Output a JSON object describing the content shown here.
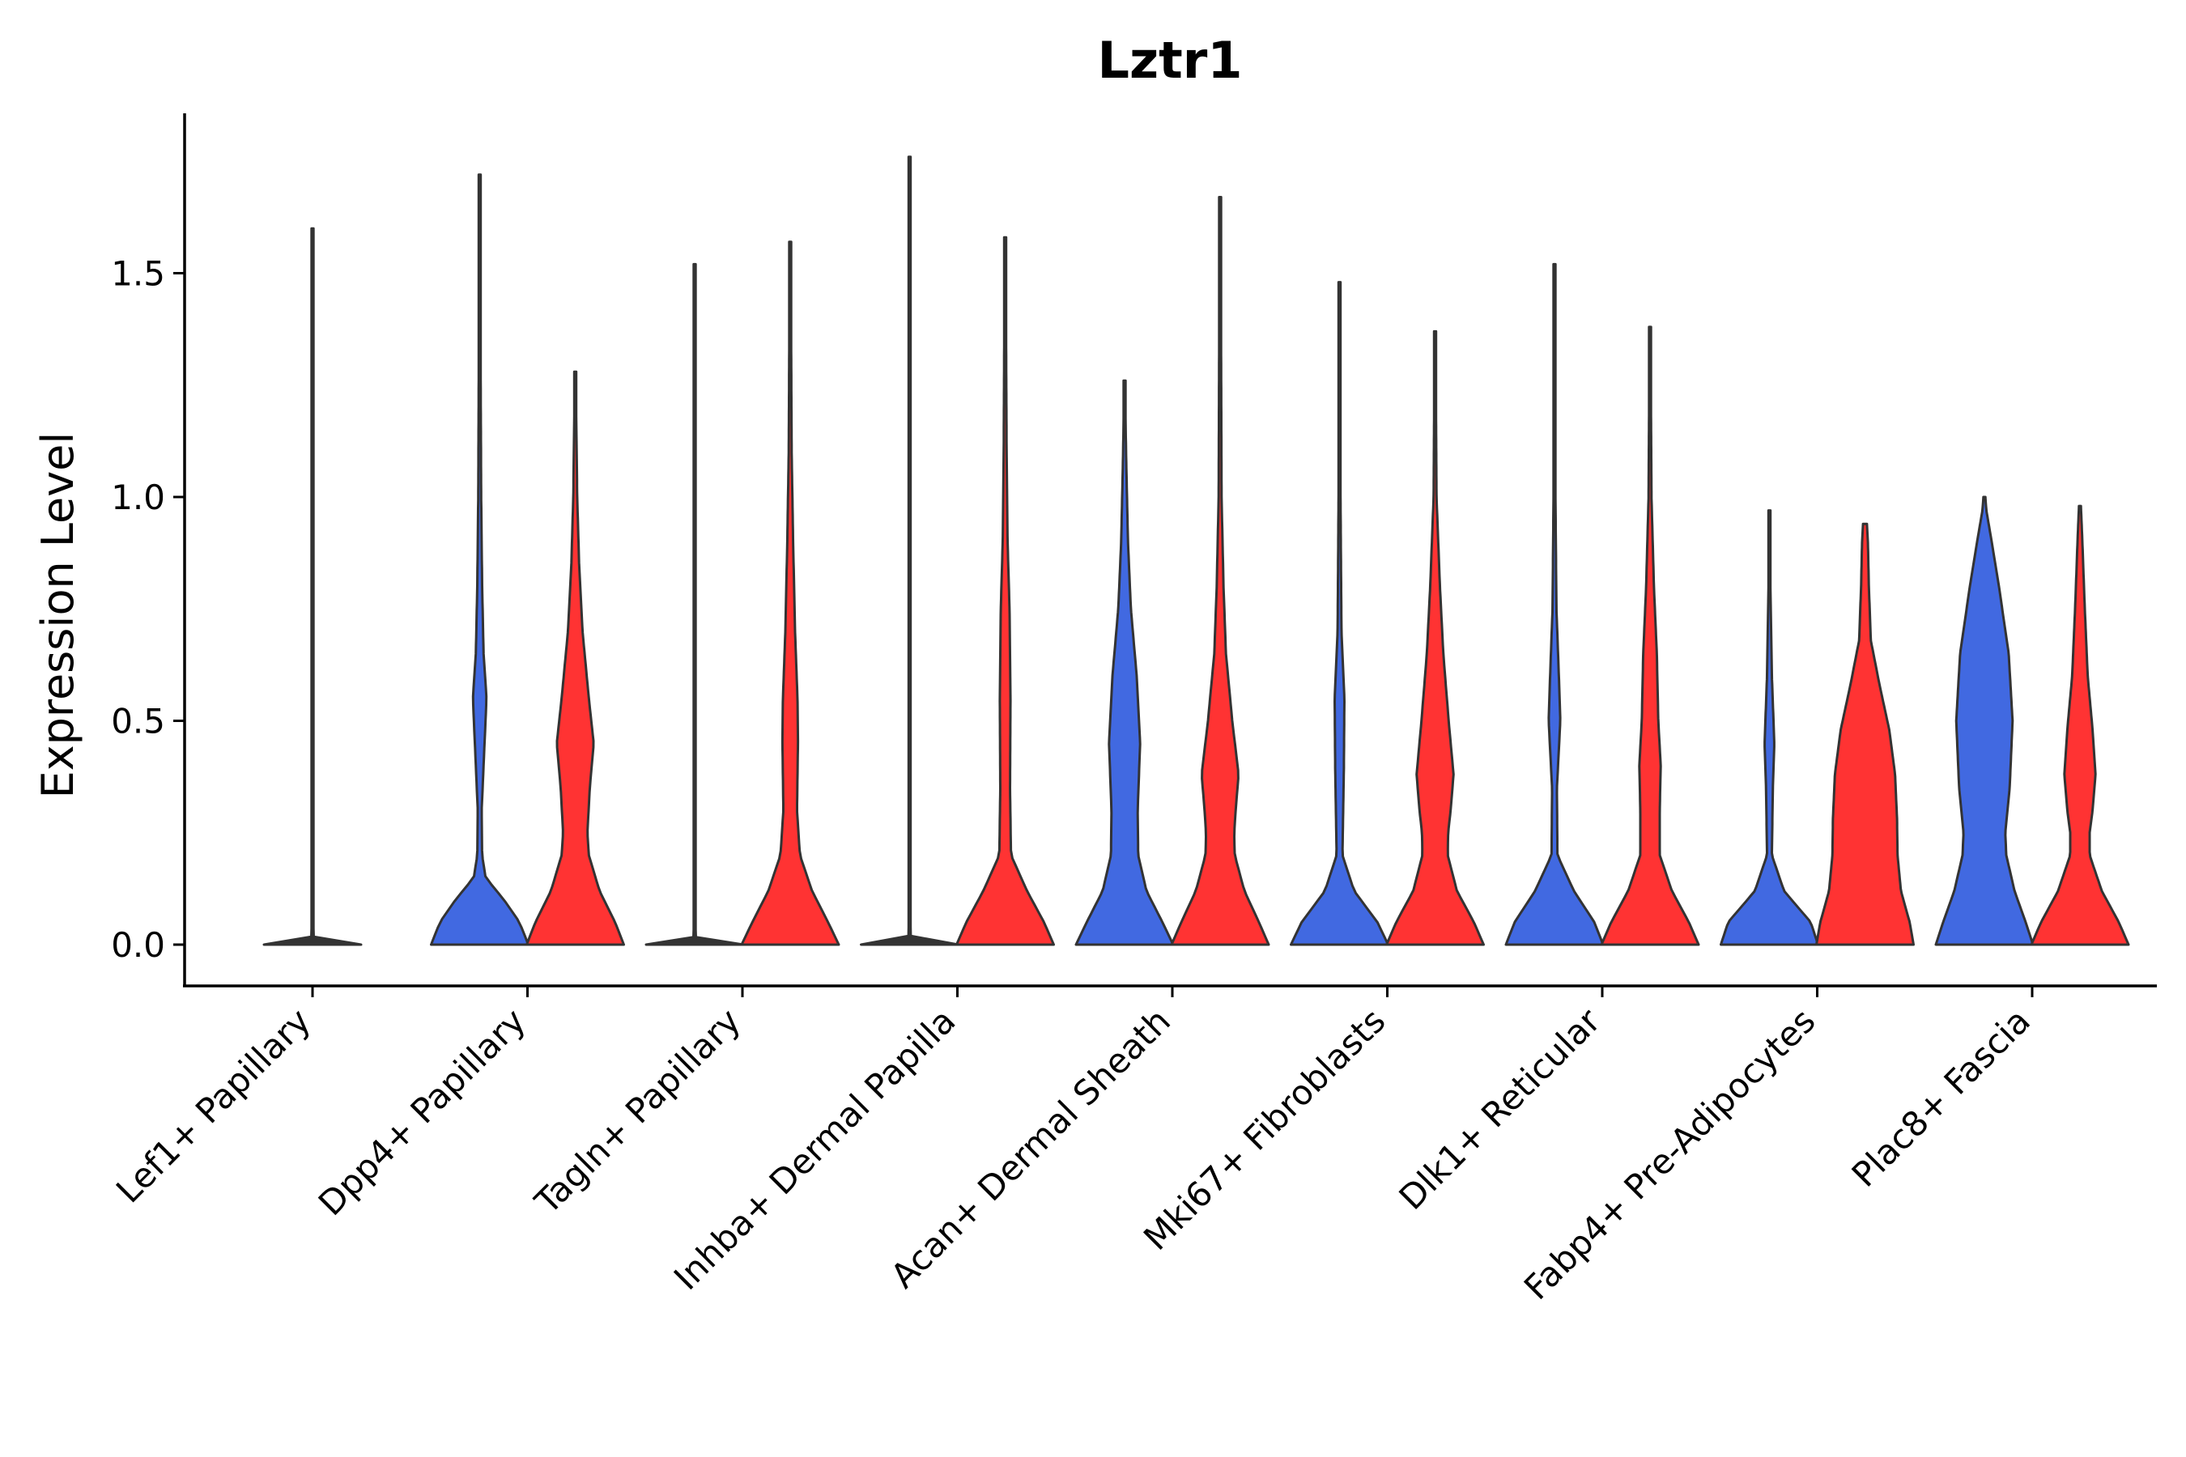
{
  "chart_data": {
    "type": "violin",
    "title": "Lztr1",
    "xlabel": "",
    "ylabel": "Expression Level",
    "ylim": [
      -0.09,
      1.85
    ],
    "yticks": [
      0.0,
      0.5,
      1.0,
      1.5
    ],
    "ytick_labels": [
      "0.0",
      "0.5",
      "1.0",
      "1.5"
    ],
    "grid": false,
    "legend": "none",
    "group_colors": {
      "blue": "#4169E1",
      "red": "#FF3333"
    },
    "categories": [
      "Lef1+ Papillary",
      "Dpp4+ Papillary",
      "Tagln+ Papillary",
      "Inhba+ Dermal Papilla",
      "Acan+ Dermal Sheath",
      "Mki67+ Fibroblasts",
      "Dlk1+ Reticular",
      "Fabp4+ Pre-Adipocytes",
      "Plac8+ Fascia"
    ],
    "series": [
      {
        "name": "blue",
        "color": "#4169E1",
        "violins": [
          {
            "category": "Lef1+ Papillary",
            "max": 1.6,
            "density": [
              [
                0,
                1
              ],
              [
                0.01,
                0.03
              ],
              [
                0.05,
                0.004
              ],
              [
                1.6,
                0.004
              ]
            ]
          },
          {
            "category": "Dpp4+ Papillary",
            "max": 1.72,
            "density": [
              [
                0,
                1
              ],
              [
                0.05,
                0.82
              ],
              [
                0.1,
                0.5
              ],
              [
                0.15,
                0.12
              ],
              [
                0.2,
                0.05
              ],
              [
                0.3,
                0.04
              ],
              [
                0.45,
                0.1
              ],
              [
                0.55,
                0.14
              ],
              [
                0.65,
                0.08
              ],
              [
                0.8,
                0.05
              ],
              [
                1.0,
                0.03
              ],
              [
                1.4,
                0.015
              ],
              [
                1.72,
                0.01
              ]
            ]
          },
          {
            "category": "Tagln+ Papillary",
            "max": 1.52,
            "density": [
              [
                0,
                1
              ],
              [
                0.01,
                0.03
              ],
              [
                0.05,
                0.004
              ],
              [
                1.52,
                0.004
              ]
            ]
          },
          {
            "category": "Inhba+ Dermal Papilla",
            "max": 1.76,
            "density": [
              [
                0,
                1
              ],
              [
                0.01,
                0.03
              ],
              [
                0.05,
                0.004
              ],
              [
                1.76,
                0.004
              ]
            ]
          },
          {
            "category": "Acan+ Dermal Sheath",
            "max": 1.26,
            "density": [
              [
                0,
                1
              ],
              [
                0.05,
                0.78
              ],
              [
                0.12,
                0.45
              ],
              [
                0.2,
                0.28
              ],
              [
                0.3,
                0.27
              ],
              [
                0.45,
                0.32
              ],
              [
                0.6,
                0.25
              ],
              [
                0.75,
                0.13
              ],
              [
                0.9,
                0.07
              ],
              [
                1.1,
                0.03
              ],
              [
                1.26,
                0.01
              ]
            ]
          },
          {
            "category": "Mki67+ Fibroblasts",
            "max": 1.48,
            "density": [
              [
                0,
                1
              ],
              [
                0.05,
                0.78
              ],
              [
                0.12,
                0.3
              ],
              [
                0.2,
                0.06
              ],
              [
                0.4,
                0.09
              ],
              [
                0.55,
                0.1
              ],
              [
                0.7,
                0.04
              ],
              [
                1.0,
                0.02
              ],
              [
                1.48,
                0.01
              ]
            ]
          },
          {
            "category": "Dlk1+ Reticular",
            "max": 1.52,
            "density": [
              [
                0,
                1
              ],
              [
                0.05,
                0.82
              ],
              [
                0.12,
                0.4
              ],
              [
                0.2,
                0.06
              ],
              [
                0.35,
                0.05
              ],
              [
                0.5,
                0.12
              ],
              [
                0.6,
                0.09
              ],
              [
                0.75,
                0.04
              ],
              [
                1.0,
                0.02
              ],
              [
                1.52,
                0.01
              ]
            ]
          },
          {
            "category": "Fabp4+ Pre-Adipocytes",
            "max": 0.97,
            "density": [
              [
                0,
                1
              ],
              [
                0.05,
                0.85
              ],
              [
                0.12,
                0.3
              ],
              [
                0.2,
                0.05
              ],
              [
                0.35,
                0.07
              ],
              [
                0.45,
                0.1
              ],
              [
                0.6,
                0.05
              ],
              [
                0.8,
                0.02
              ],
              [
                0.97,
                0.01
              ]
            ]
          },
          {
            "category": "Plac8+ Fascia",
            "max": 1.0,
            "density": [
              [
                0,
                1
              ],
              [
                0.05,
                0.85
              ],
              [
                0.12,
                0.62
              ],
              [
                0.2,
                0.45
              ],
              [
                0.25,
                0.43
              ],
              [
                0.35,
                0.52
              ],
              [
                0.5,
                0.58
              ],
              [
                0.65,
                0.5
              ],
              [
                0.8,
                0.3
              ],
              [
                0.9,
                0.15
              ],
              [
                0.97,
                0.04
              ],
              [
                1.0,
                0.02
              ]
            ]
          }
        ]
      },
      {
        "name": "red",
        "color": "#FF3333",
        "violins": [
          {
            "category": "Dpp4+ Papillary",
            "max": 1.28,
            "density": [
              [
                0,
                1
              ],
              [
                0.05,
                0.82
              ],
              [
                0.12,
                0.5
              ],
              [
                0.2,
                0.28
              ],
              [
                0.25,
                0.25
              ],
              [
                0.35,
                0.3
              ],
              [
                0.45,
                0.38
              ],
              [
                0.55,
                0.28
              ],
              [
                0.7,
                0.15
              ],
              [
                0.85,
                0.08
              ],
              [
                1.0,
                0.04
              ],
              [
                1.28,
                0.01
              ]
            ]
          },
          {
            "category": "Tagln+ Papillary",
            "max": 1.57,
            "density": [
              [
                0,
                1
              ],
              [
                0.05,
                0.78
              ],
              [
                0.12,
                0.45
              ],
              [
                0.2,
                0.2
              ],
              [
                0.3,
                0.14
              ],
              [
                0.45,
                0.16
              ],
              [
                0.55,
                0.15
              ],
              [
                0.7,
                0.1
              ],
              [
                0.9,
                0.06
              ],
              [
                1.1,
                0.03
              ],
              [
                1.57,
                0.01
              ]
            ]
          },
          {
            "category": "Inhba+ Dermal Papilla",
            "max": 1.58,
            "density": [
              [
                0,
                1
              ],
              [
                0.05,
                0.8
              ],
              [
                0.12,
                0.45
              ],
              [
                0.2,
                0.12
              ],
              [
                0.35,
                0.1
              ],
              [
                0.55,
                0.11
              ],
              [
                0.75,
                0.09
              ],
              [
                0.9,
                0.05
              ],
              [
                1.1,
                0.03
              ],
              [
                1.58,
                0.01
              ]
            ]
          },
          {
            "category": "Acan+ Dermal Sheath",
            "max": 1.67,
            "density": [
              [
                0,
                1
              ],
              [
                0.05,
                0.8
              ],
              [
                0.12,
                0.5
              ],
              [
                0.2,
                0.3
              ],
              [
                0.25,
                0.29
              ],
              [
                0.3,
                0.32
              ],
              [
                0.38,
                0.38
              ],
              [
                0.5,
                0.25
              ],
              [
                0.65,
                0.12
              ],
              [
                0.8,
                0.07
              ],
              [
                1.0,
                0.03
              ],
              [
                1.67,
                0.01
              ]
            ]
          },
          {
            "category": "Mki67+ Fibroblasts",
            "max": 1.37,
            "density": [
              [
                0,
                1
              ],
              [
                0.05,
                0.8
              ],
              [
                0.12,
                0.45
              ],
              [
                0.2,
                0.26
              ],
              [
                0.25,
                0.27
              ],
              [
                0.3,
                0.32
              ],
              [
                0.38,
                0.38
              ],
              [
                0.5,
                0.28
              ],
              [
                0.65,
                0.17
              ],
              [
                0.8,
                0.1
              ],
              [
                1.0,
                0.03
              ],
              [
                1.37,
                0.01
              ]
            ]
          },
          {
            "category": "Dlk1+ Reticular",
            "max": 1.38,
            "density": [
              [
                0,
                1
              ],
              [
                0.05,
                0.8
              ],
              [
                0.12,
                0.45
              ],
              [
                0.2,
                0.2
              ],
              [
                0.3,
                0.2
              ],
              [
                0.4,
                0.22
              ],
              [
                0.5,
                0.17
              ],
              [
                0.65,
                0.14
              ],
              [
                0.8,
                0.08
              ],
              [
                1.0,
                0.03
              ],
              [
                1.38,
                0.01
              ]
            ]
          },
          {
            "category": "Fabp4+ Pre-Adipocytes",
            "max": 0.94,
            "density": [
              [
                0,
                1
              ],
              [
                0.05,
                0.92
              ],
              [
                0.12,
                0.74
              ],
              [
                0.2,
                0.67
              ],
              [
                0.28,
                0.66
              ],
              [
                0.38,
                0.62
              ],
              [
                0.48,
                0.5
              ],
              [
                0.58,
                0.3
              ],
              [
                0.68,
                0.12
              ],
              [
                0.8,
                0.08
              ],
              [
                0.9,
                0.06
              ],
              [
                0.94,
                0.04
              ]
            ]
          },
          {
            "category": "Plac8+ Fascia",
            "max": 0.98,
            "density": [
              [
                0,
                1
              ],
              [
                0.05,
                0.8
              ],
              [
                0.12,
                0.45
              ],
              [
                0.2,
                0.2
              ],
              [
                0.25,
                0.2
              ],
              [
                0.3,
                0.26
              ],
              [
                0.38,
                0.32
              ],
              [
                0.48,
                0.26
              ],
              [
                0.6,
                0.16
              ],
              [
                0.75,
                0.1
              ],
              [
                0.9,
                0.05
              ],
              [
                0.98,
                0.02
              ]
            ]
          }
        ]
      }
    ]
  }
}
